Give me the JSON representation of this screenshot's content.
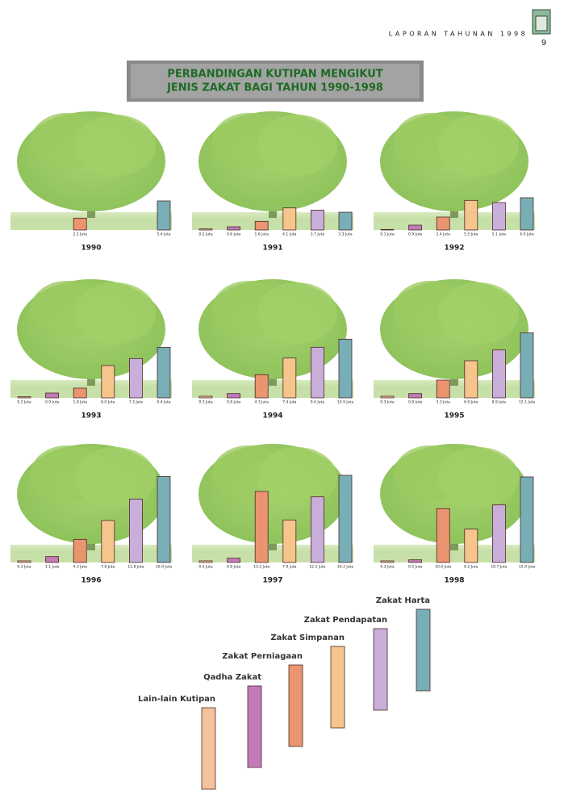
{
  "header": {
    "text": "LAPORAN TAHUNAN 1998",
    "page": "9"
  },
  "title_lines": [
    "PERBANDINGAN KUTIPAN MENGIKUT",
    "JENIS ZAKAT BAGI TAHUN 1990-1998"
  ],
  "legend": [
    {
      "name": "Lain-lain Kutipan",
      "color": "#f3c29a"
    },
    {
      "name": "Qadha Zakat",
      "color": "#c27ab8"
    },
    {
      "name": "Zakat Perniagaan",
      "color": "#ea9470"
    },
    {
      "name": "Zakat Simpanan",
      "color": "#f6c58c"
    },
    {
      "name": "Zakat Pendapatan",
      "color": "#c8aed9"
    },
    {
      "name": "Zakat Harta",
      "color": "#78aeb6"
    }
  ],
  "chart_data": [
    {
      "type": "bar",
      "title": "1990",
      "values": [
        null,
        null,
        2.2,
        null,
        null,
        5.4
      ],
      "value_labels": [
        null,
        null,
        "2.2 Juta",
        null,
        null,
        "5.4 Juta"
      ]
    },
    {
      "type": "bar",
      "title": "1991",
      "values": [
        0.2,
        0.6,
        1.6,
        4.1,
        3.7,
        3.3
      ],
      "value_labels": [
        "0.2 Juta",
        "0.6 Juta",
        "1.6 Juta",
        "4.1 Juta",
        "3.7 Juta",
        "3.3 Juta"
      ]
    },
    {
      "type": "bar",
      "title": "1992",
      "values": [
        0.1,
        0.9,
        2.4,
        5.5,
        5.1,
        6.0
      ],
      "value_labels": [
        "0.1 Juta",
        "0.9 Juta",
        "2.4 Juta",
        "5.5 Juta",
        "5.1 Juta",
        "6.0 Juta"
      ]
    },
    {
      "type": "bar",
      "title": "1993",
      "values": [
        0.2,
        0.9,
        1.8,
        6.0,
        7.3,
        9.4
      ],
      "value_labels": [
        "0.2 Juta",
        "0.9 Juta",
        "1.8 Juta",
        "6.0 Juta",
        "7.3 Juta",
        "9.4 Juta"
      ]
    },
    {
      "type": "bar",
      "title": "1994",
      "values": [
        0.3,
        0.8,
        4.3,
        7.4,
        9.4,
        10.9
      ],
      "value_labels": [
        "0.3 Juta",
        "0.8 Juta",
        "4.3 Juta",
        "7.4 Juta",
        "9.4 Juta",
        "10.9 Juta"
      ]
    },
    {
      "type": "bar",
      "title": "1995",
      "values": [
        0.3,
        0.8,
        3.3,
        6.9,
        8.9,
        12.1
      ],
      "value_labels": [
        "0.3 Juta",
        "0.8 Juta",
        "3.3 Juta",
        "6.9 Juta",
        "8.9 Juta",
        "12.1 Juta"
      ]
    },
    {
      "type": "bar",
      "title": "1996",
      "values": [
        0.3,
        1.1,
        4.3,
        7.8,
        11.8,
        16.0
      ],
      "value_labels": [
        "0.3 Juta",
        "1.1 Juta",
        "4.3 Juta",
        "7.8 Juta",
        "11.8 Juta",
        "16.0 Juta"
      ]
    },
    {
      "type": "bar",
      "title": "1997",
      "values": [
        0.3,
        0.8,
        13.2,
        7.9,
        12.2,
        16.2
      ],
      "value_labels": [
        "0.3 Juta",
        "0.8 Juta",
        "13.2 Juta",
        "7.9 Juta",
        "12.2 Juta",
        "16.2 Juta"
      ]
    },
    {
      "type": "bar",
      "title": "1998",
      "values": [
        0.3,
        0.5,
        10.0,
        6.2,
        10.7,
        15.9
      ],
      "value_labels": [
        "0.3 Juta",
        "0.5 Juta",
        "10.0 Juta",
        "6.2 Juta",
        "10.7 Juta",
        "15.9 Juta"
      ]
    }
  ]
}
